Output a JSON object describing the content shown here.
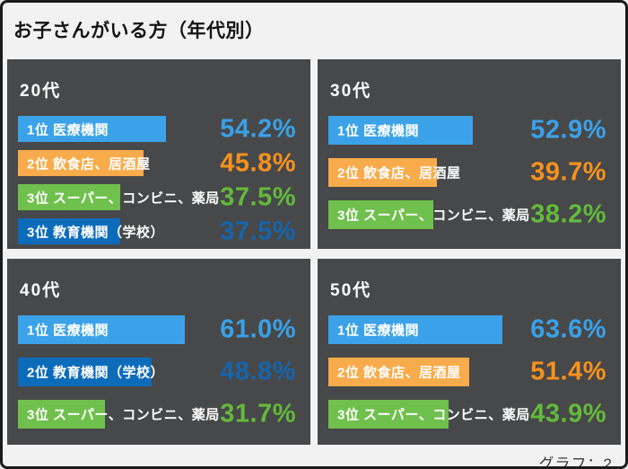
{
  "page": {
    "title": "お子さんがいる方（年代別）",
    "footer_label": "グラフ：2"
  },
  "colors": {
    "page_bg": "#f2f2f2",
    "border": "#1b1b1b",
    "panel_bg": "#474849",
    "blue_bar": "#3ba2e9",
    "blue_text": "#3aa1e8",
    "orange_bar": "#f8ab4b",
    "orange_text": "#f6921e",
    "green_bar": "#70c04e",
    "green_text": "#62ba3c",
    "darkblue_bar": "#0d6cba",
    "darkblue_text": "#1565ad"
  },
  "chart_data": [
    {
      "type": "bar",
      "orientation": "horizontal",
      "title": "20代",
      "categories": [
        "1位 医療機関",
        "2位 飲食店、居酒屋",
        "3位 スーパー、コンビニ、薬局",
        "3位 教育機関（学校）"
      ],
      "values": [
        54.2,
        45.8,
        37.5,
        37.5
      ],
      "value_labels": [
        "54.2%",
        "45.8%",
        "37.5%",
        "37.5%"
      ],
      "bar_colors": [
        "blue",
        "orange",
        "green",
        "darkblue"
      ],
      "xlim": [
        0,
        100
      ]
    },
    {
      "type": "bar",
      "orientation": "horizontal",
      "title": "30代",
      "categories": [
        "1位 医療機関",
        "2位 飲食店、居酒屋",
        "3位 スーパー、コンビニ、薬局"
      ],
      "values": [
        52.9,
        39.7,
        38.2
      ],
      "value_labels": [
        "52.9%",
        "39.7%",
        "38.2%"
      ],
      "bar_colors": [
        "blue",
        "orange",
        "green"
      ],
      "xlim": [
        0,
        100
      ]
    },
    {
      "type": "bar",
      "orientation": "horizontal",
      "title": "40代",
      "categories": [
        "1位 医療機関",
        "2位 教育機関（学校）",
        "3位 スーパー、コンビニ、薬局"
      ],
      "values": [
        61.0,
        48.8,
        31.7
      ],
      "value_labels": [
        "61.0%",
        "48.8%",
        "31.7%"
      ],
      "bar_colors": [
        "blue",
        "darkblue",
        "green"
      ],
      "xlim": [
        0,
        100
      ]
    },
    {
      "type": "bar",
      "orientation": "horizontal",
      "title": "50代",
      "categories": [
        "1位 医療機関",
        "2位 飲食店、居酒屋",
        "3位 スーパー、コンビニ、薬局"
      ],
      "values": [
        63.6,
        51.4,
        43.9
      ],
      "value_labels": [
        "63.6%",
        "51.4%",
        "43.9%"
      ],
      "bar_colors": [
        "blue",
        "orange",
        "green"
      ],
      "xlim": [
        0,
        100
      ]
    }
  ]
}
